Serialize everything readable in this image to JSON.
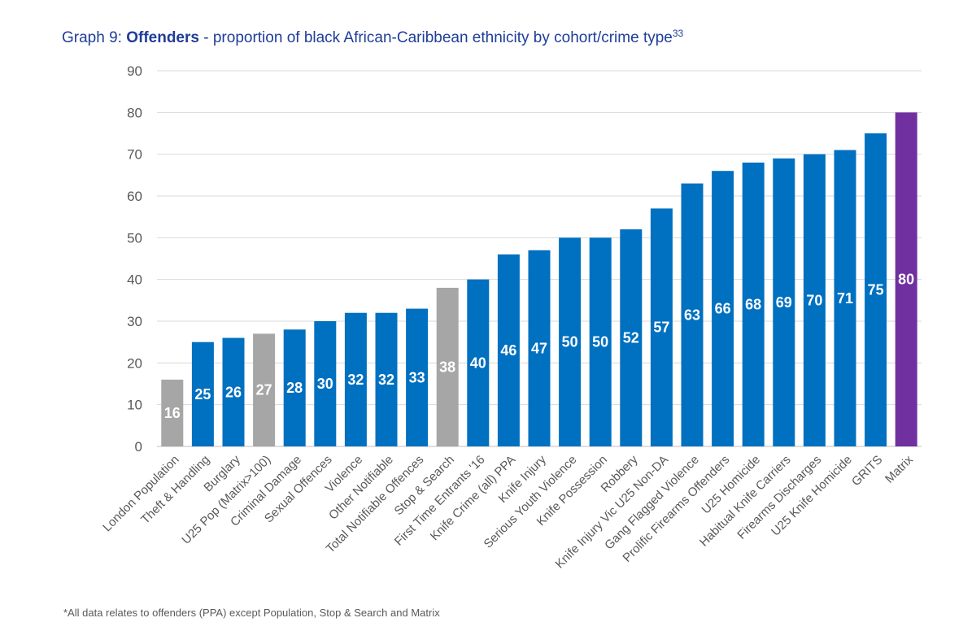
{
  "title": {
    "prefix": "Graph 9: ",
    "bold": "Offenders",
    "rest": " - proportion of black African-Caribbean ethnicity by cohort/crime type",
    "superscript": "33"
  },
  "footnote": "*All data relates to offenders (PPA) except Population, Stop & Search and Matrix",
  "colors": {
    "blue": "#0070c0",
    "grey": "#a6a6a6",
    "purple": "#7030a0",
    "label_white": "#ffffff",
    "axis_text": "#595959",
    "grid": "#d9d9d9"
  },
  "chart_data": {
    "type": "bar",
    "title": "Offenders - proportion of black African-Caribbean ethnicity by cohort/crime type",
    "xlabel": "",
    "ylabel": "",
    "ylim": [
      0,
      90
    ],
    "yticks": [
      0,
      10,
      20,
      30,
      40,
      50,
      60,
      70,
      80,
      90
    ],
    "grid": true,
    "legend": "none",
    "data_labels": true,
    "categories": [
      "London Population",
      "Theft & Handling",
      "Burglary",
      "U25 Pop (Matrix>100)",
      "Criminal Damage",
      "Sexual Offences",
      "Violence",
      "Other Notifiable",
      "Total Notifiable Offences",
      "Stop & Search",
      "First Time Entrants '16",
      "Knife Crime (all) PPA",
      "Knife Injury",
      "Serious Youth Violence",
      "Knife Possession",
      "Robbery",
      "Knife Injury Vic U25 Non-DA",
      "Gang Flagged Violence",
      "Prolific Firearms Offenders",
      "U25 Homicide",
      "Habitual Knife Carriers",
      "Firearms Discharges",
      "U25 Knife Homicide",
      "GRITS",
      "Matrix"
    ],
    "values": [
      16,
      25,
      26,
      27,
      28,
      30,
      32,
      32,
      33,
      38,
      40,
      46,
      47,
      50,
      50,
      52,
      57,
      63,
      66,
      68,
      69,
      70,
      71,
      75,
      80
    ],
    "bar_colors": [
      "grey",
      "blue",
      "blue",
      "grey",
      "blue",
      "blue",
      "blue",
      "blue",
      "blue",
      "grey",
      "blue",
      "blue",
      "blue",
      "blue",
      "blue",
      "blue",
      "blue",
      "blue",
      "blue",
      "blue",
      "blue",
      "blue",
      "blue",
      "blue",
      "purple"
    ]
  }
}
